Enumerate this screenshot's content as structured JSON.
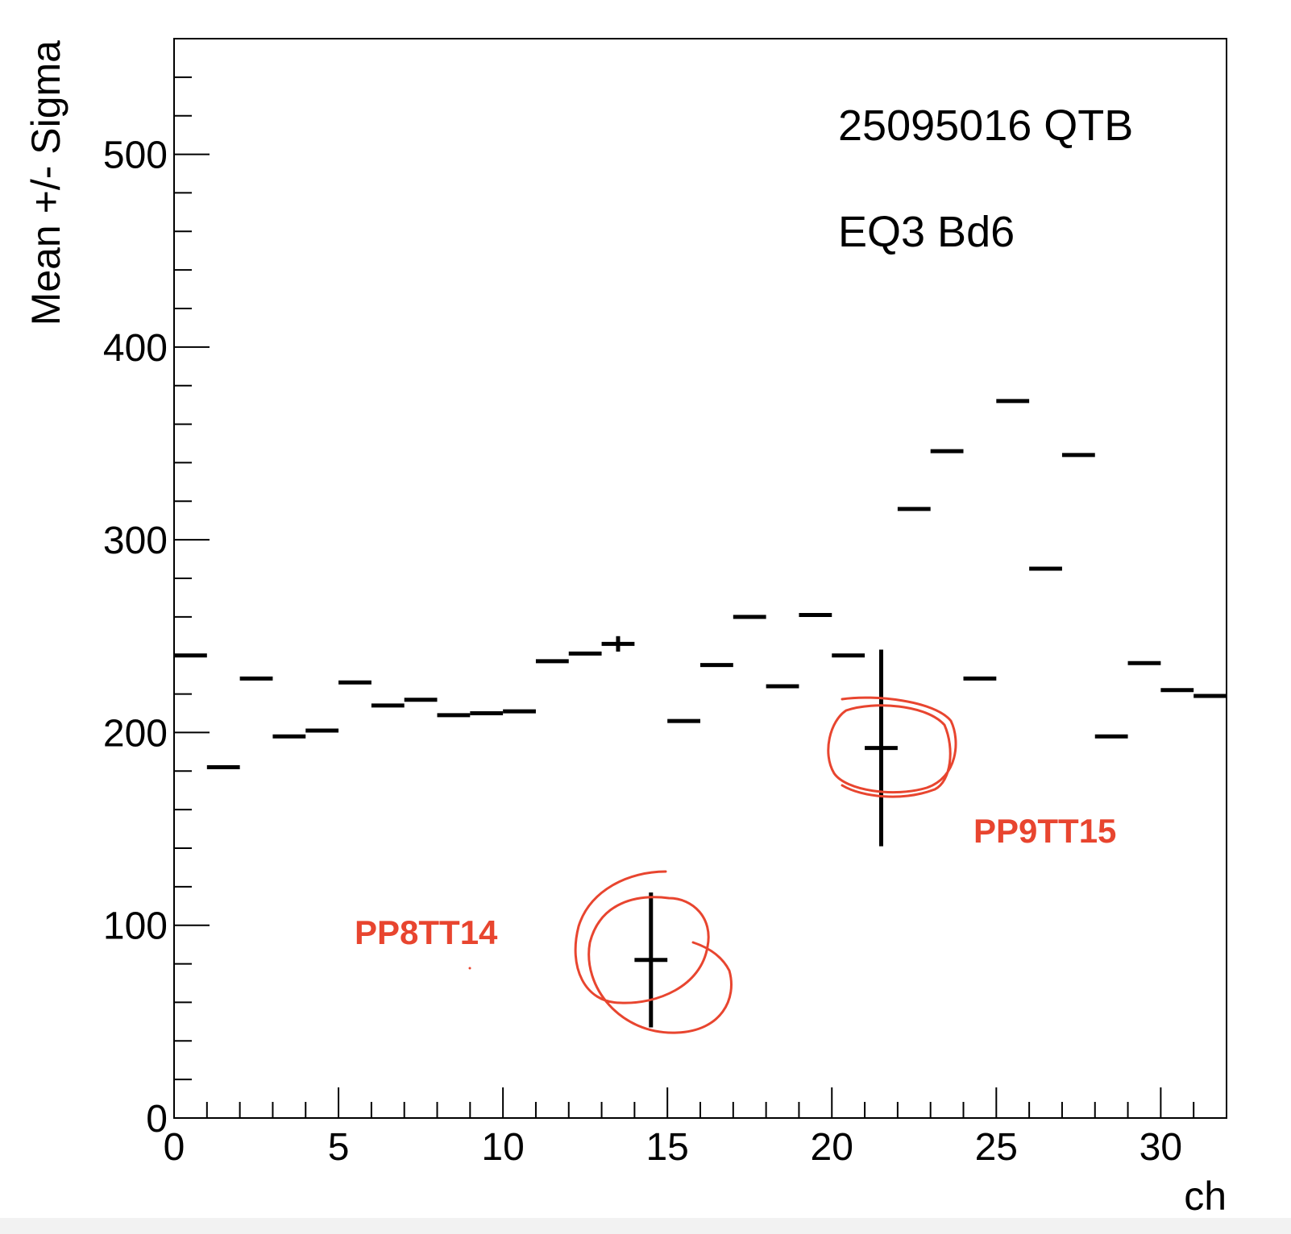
{
  "chart_data": {
    "type": "scatter",
    "title": "",
    "xlabel": "ch",
    "ylabel": "Mean +/- Sigma",
    "xlim": [
      0,
      32
    ],
    "ylim": [
      0,
      560
    ],
    "x_major_ticks": [
      0,
      5,
      10,
      15,
      20,
      25,
      30
    ],
    "x_minor_step": 1,
    "y_major_ticks": [
      0,
      100,
      200,
      300,
      400,
      500
    ],
    "y_minor_step": 20,
    "grid": false,
    "info_lines": [
      "25095016 QTB",
      "EQ3 Bd6"
    ],
    "series": [
      {
        "points": [
          {
            "x": 0.5,
            "y": 240,
            "sigma": 0
          },
          {
            "x": 1.5,
            "y": 182,
            "sigma": 0
          },
          {
            "x": 2.5,
            "y": 228,
            "sigma": 0
          },
          {
            "x": 3.5,
            "y": 198,
            "sigma": 0
          },
          {
            "x": 4.5,
            "y": 201,
            "sigma": 0
          },
          {
            "x": 5.5,
            "y": 226,
            "sigma": 0
          },
          {
            "x": 6.5,
            "y": 214,
            "sigma": 0
          },
          {
            "x": 7.5,
            "y": 217,
            "sigma": 0
          },
          {
            "x": 8.5,
            "y": 209,
            "sigma": 0
          },
          {
            "x": 9.5,
            "y": 210,
            "sigma": 0
          },
          {
            "x": 10.5,
            "y": 211,
            "sigma": 0
          },
          {
            "x": 11.5,
            "y": 237,
            "sigma": 0
          },
          {
            "x": 12.5,
            "y": 241,
            "sigma": 0
          },
          {
            "x": 13.5,
            "y": 246,
            "sigma": 4
          },
          {
            "x": 14.5,
            "y": 82,
            "sigma": 35
          },
          {
            "x": 15.5,
            "y": 206,
            "sigma": 0
          },
          {
            "x": 16.5,
            "y": 235,
            "sigma": 0
          },
          {
            "x": 17.5,
            "y": 260,
            "sigma": 0
          },
          {
            "x": 18.5,
            "y": 224,
            "sigma": 0
          },
          {
            "x": 19.5,
            "y": 261,
            "sigma": 0
          },
          {
            "x": 20.5,
            "y": 240,
            "sigma": 0
          },
          {
            "x": 21.5,
            "y": 192,
            "sigma": 51
          },
          {
            "x": 22.5,
            "y": 316,
            "sigma": 0
          },
          {
            "x": 23.5,
            "y": 346,
            "sigma": 0
          },
          {
            "x": 24.5,
            "y": 228,
            "sigma": 0
          },
          {
            "x": 25.5,
            "y": 372,
            "sigma": 0
          },
          {
            "x": 26.5,
            "y": 285,
            "sigma": 0
          },
          {
            "x": 27.5,
            "y": 344,
            "sigma": 0
          },
          {
            "x": 28.5,
            "y": 198,
            "sigma": 0
          },
          {
            "x": 29.5,
            "y": 236,
            "sigma": 0
          },
          {
            "x": 30.5,
            "y": 222,
            "sigma": 0
          },
          {
            "x": 31.5,
            "y": 219,
            "sigma": 0
          }
        ]
      }
    ],
    "annotations": [
      {
        "text": "PP8TT14",
        "x": 14.5,
        "y": 82
      },
      {
        "text": "PP9TT15",
        "x": 21.5,
        "y": 192
      }
    ],
    "annotation_color": "#e8452f"
  }
}
